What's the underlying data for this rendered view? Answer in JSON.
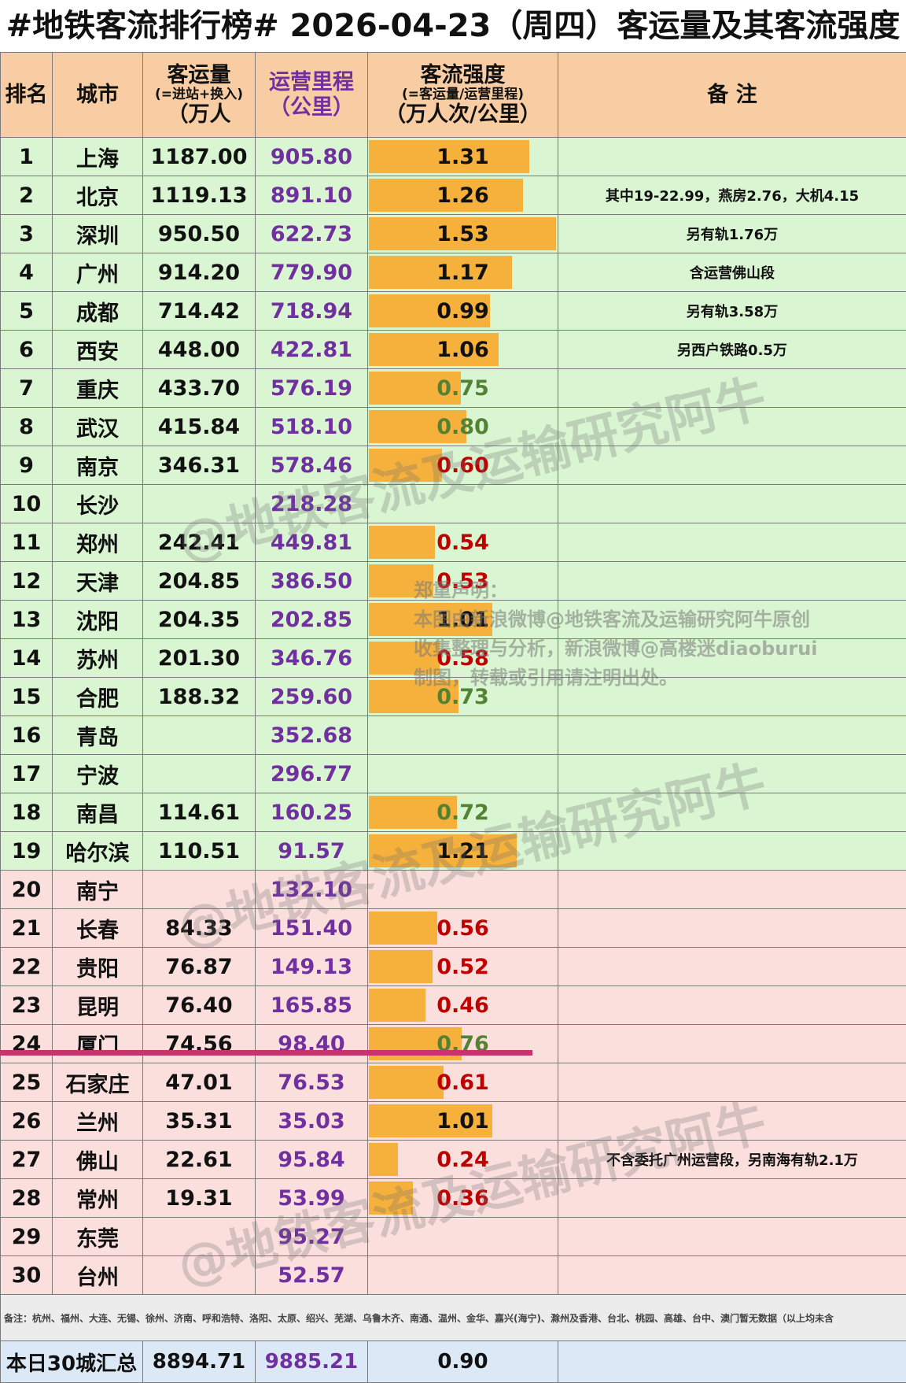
{
  "title": "#地铁客流排行榜# 2026-04-23（周四）客运量及其客流强度",
  "headers": {
    "rank": "排名",
    "city": "城市",
    "ridership": [
      "客运量",
      "(=进站+换入)",
      "（万人"
    ],
    "mileage": [
      "运营里程",
      "（公里）"
    ],
    "intensity": [
      "客流强度",
      "(=客运量/运营里程)",
      "（万人次/公里）"
    ],
    "note": "备 注"
  },
  "chart_data": {
    "type": "table",
    "columns": [
      "排名",
      "城市",
      "客运量（万人）",
      "运营里程（公里）",
      "客流强度（万人次/公里）",
      "备注"
    ],
    "rows": [
      {
        "rank": "1",
        "city": "上海",
        "ridership": "1187.00",
        "mileage": "905.80",
        "intensity": "1.31",
        "note": "",
        "zone": "green"
      },
      {
        "rank": "2",
        "city": "北京",
        "ridership": "1119.13",
        "mileage": "891.10",
        "intensity": "1.26",
        "note": "其中19-22.99，燕房2.76，大机4.15",
        "zone": "green"
      },
      {
        "rank": "3",
        "city": "深圳",
        "ridership": "950.50",
        "mileage": "622.73",
        "intensity": "1.53",
        "note": "另有轨1.76万",
        "zone": "green"
      },
      {
        "rank": "4",
        "city": "广州",
        "ridership": "914.20",
        "mileage": "779.90",
        "intensity": "1.17",
        "note": "含运营佛山段",
        "zone": "green"
      },
      {
        "rank": "5",
        "city": "成都",
        "ridership": "714.42",
        "mileage": "718.94",
        "intensity": "0.99",
        "note": "另有轨3.58万",
        "zone": "green"
      },
      {
        "rank": "6",
        "city": "西安",
        "ridership": "448.00",
        "mileage": "422.81",
        "intensity": "1.06",
        "note": "另西户铁路0.5万",
        "zone": "green"
      },
      {
        "rank": "7",
        "city": "重庆",
        "ridership": "433.70",
        "mileage": "576.19",
        "intensity": "0.75",
        "note": "",
        "zone": "green"
      },
      {
        "rank": "8",
        "city": "武汉",
        "ridership": "415.84",
        "mileage": "518.10",
        "intensity": "0.80",
        "note": "",
        "zone": "green"
      },
      {
        "rank": "9",
        "city": "南京",
        "ridership": "346.31",
        "mileage": "578.46",
        "intensity": "0.60",
        "note": "",
        "zone": "green"
      },
      {
        "rank": "10",
        "city": "长沙",
        "ridership": "",
        "mileage": "218.28",
        "intensity": "",
        "note": "",
        "zone": "green"
      },
      {
        "rank": "11",
        "city": "郑州",
        "ridership": "242.41",
        "mileage": "449.81",
        "intensity": "0.54",
        "note": "",
        "zone": "green"
      },
      {
        "rank": "12",
        "city": "天津",
        "ridership": "204.85",
        "mileage": "386.50",
        "intensity": "0.53",
        "note": "",
        "zone": "green"
      },
      {
        "rank": "13",
        "city": "沈阳",
        "ridership": "204.35",
        "mileage": "202.85",
        "intensity": "1.01",
        "note": "",
        "zone": "green"
      },
      {
        "rank": "14",
        "city": "苏州",
        "ridership": "201.30",
        "mileage": "346.76",
        "intensity": "0.58",
        "note": "",
        "zone": "green"
      },
      {
        "rank": "15",
        "city": "合肥",
        "ridership": "188.32",
        "mileage": "259.60",
        "intensity": "0.73",
        "note": "",
        "zone": "green"
      },
      {
        "rank": "16",
        "city": "青岛",
        "ridership": "",
        "mileage": "352.68",
        "intensity": "",
        "note": "",
        "zone": "green"
      },
      {
        "rank": "17",
        "city": "宁波",
        "ridership": "",
        "mileage": "296.77",
        "intensity": "",
        "note": "",
        "zone": "green"
      },
      {
        "rank": "18",
        "city": "南昌",
        "ridership": "114.61",
        "mileage": "160.25",
        "intensity": "0.72",
        "note": "",
        "zone": "green"
      },
      {
        "rank": "19",
        "city": "哈尔滨",
        "ridership": "110.51",
        "mileage": "91.57",
        "intensity": "1.21",
        "note": "",
        "zone": "green"
      },
      {
        "rank": "20",
        "city": "南宁",
        "ridership": "",
        "mileage": "132.10",
        "intensity": "",
        "note": "",
        "zone": "pink"
      },
      {
        "rank": "21",
        "city": "长春",
        "ridership": "84.33",
        "mileage": "151.40",
        "intensity": "0.56",
        "note": "",
        "zone": "pink"
      },
      {
        "rank": "22",
        "city": "贵阳",
        "ridership": "76.87",
        "mileage": "149.13",
        "intensity": "0.52",
        "note": "",
        "zone": "pink"
      },
      {
        "rank": "23",
        "city": "昆明",
        "ridership": "76.40",
        "mileage": "165.85",
        "intensity": "0.46",
        "note": "",
        "zone": "pink"
      },
      {
        "rank": "24",
        "city": "厦门",
        "ridership": "74.56",
        "mileage": "98.40",
        "intensity": "0.76",
        "note": "",
        "zone": "pink"
      },
      {
        "rank": "25",
        "city": "石家庄",
        "ridership": "47.01",
        "mileage": "76.53",
        "intensity": "0.61",
        "note": "",
        "zone": "pink"
      },
      {
        "rank": "26",
        "city": "兰州",
        "ridership": "35.31",
        "mileage": "35.03",
        "intensity": "1.01",
        "note": "",
        "zone": "pink"
      },
      {
        "rank": "27",
        "city": "佛山",
        "ridership": "22.61",
        "mileage": "95.84",
        "intensity": "0.24",
        "note": "不含委托广州运营段，另南海有轨2.1万",
        "zone": "pink"
      },
      {
        "rank": "28",
        "city": "常州",
        "ridership": "19.31",
        "mileage": "53.99",
        "intensity": "0.36",
        "note": "",
        "zone": "pink"
      },
      {
        "rank": "29",
        "city": "东莞",
        "ridership": "",
        "mileage": "95.27",
        "intensity": "",
        "note": "",
        "zone": "pink"
      },
      {
        "rank": "30",
        "city": "台州",
        "ridership": "",
        "mileage": "52.57",
        "intensity": "",
        "note": "",
        "zone": "pink"
      }
    ],
    "intensity_bar_max": 1.53,
    "intensity_color_bands": {
      "high": "#111111",
      "mid": "#548235",
      "low": "#c00000"
    },
    "bar_color": "#f5b13b"
  },
  "footnote": "备注：杭州、福州、大连、无锡、徐州、济南、呼和浩特、洛阳、太原、绍兴、芜湖、乌鲁木齐、南通、温州、金华、嘉兴(海宁)、滁州及香港、台北、桃园、高雄、台中、澳门暂无数据（以上均未含",
  "total": {
    "label": "本日30城汇总",
    "ridership": "8894.71",
    "mileage": "9885.21",
    "intensity": "0.90"
  },
  "watermark": {
    "text": "@地铁客流及运输研究阿牛",
    "declaration": [
      "郑重声明：",
      "本图由新浪微博@地铁客流及运输研究阿牛原创",
      "收集整理与分析，新浪微博@高楼迷diaoburui",
      "制图，转载或引用请注明出处。"
    ]
  },
  "colors": {
    "header_bg": "#f9cda3",
    "green_zone": "#d9f5d2",
    "pink_zone": "#fbdfdd",
    "cut_line": "#c8336d",
    "mileage_text": "#7030a0"
  }
}
